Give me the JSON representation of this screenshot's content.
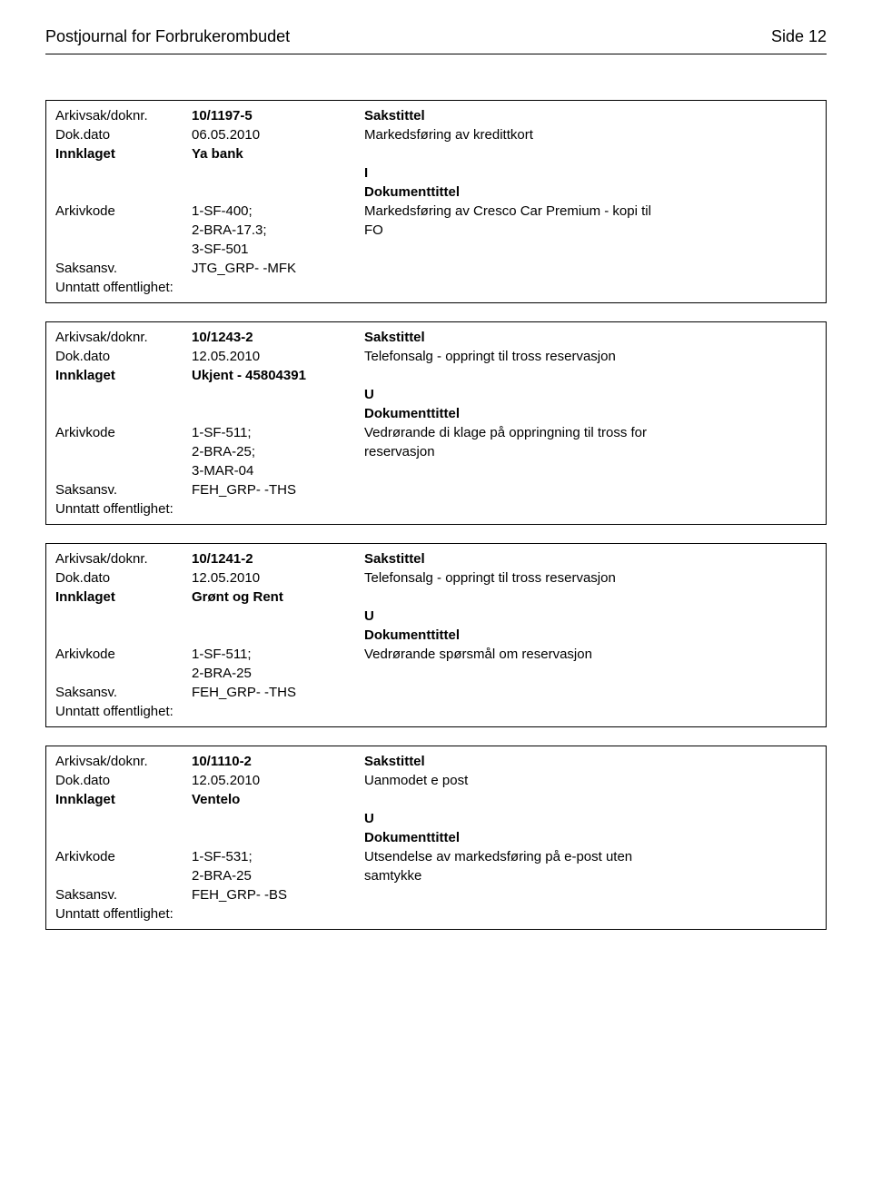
{
  "header": {
    "title": "Postjournal for Forbrukerombudet",
    "page_label": "Side 12"
  },
  "records": [
    {
      "arkivsak_label": "Arkivsak/doknr.",
      "arkivsak_value": "10/1197-5",
      "sakstittel_label": "Sakstittel",
      "dokdato_label": "Dok.dato",
      "dokdato_value": "06.05.2010",
      "sakstittel_value": "Markedsføring av kredittkort",
      "innklaget_label": "Innklaget",
      "innklaget_value": "Ya bank",
      "direction": "I",
      "dokumenttittel_label": "Dokumenttittel",
      "arkivkode_label": "Arkivkode",
      "arkivkode_value_lines": [
        "1-SF-400;",
        "2-BRA-17.3;",
        "3-SF-501"
      ],
      "dokumenttittel_value_lines": [
        "Markedsføring av Cresco Car Premium - kopi til",
        "FO"
      ],
      "saksansv_label": "Saksansv.",
      "saksansv_value": "JTG_GRP- -MFK",
      "unntatt_label": "Unntatt offentlighet:",
      "unntatt_value": ""
    },
    {
      "arkivsak_label": "Arkivsak/doknr.",
      "arkivsak_value": "10/1243-2",
      "sakstittel_label": "Sakstittel",
      "dokdato_label": "Dok.dato",
      "dokdato_value": "12.05.2010",
      "sakstittel_value": "Telefonsalg - oppringt til tross reservasjon",
      "innklaget_label": "Innklaget",
      "innklaget_value": "Ukjent - 45804391",
      "direction": "U",
      "dokumenttittel_label": "Dokumenttittel",
      "arkivkode_label": "Arkivkode",
      "arkivkode_value_lines": [
        "1-SF-511;",
        "2-BRA-25;",
        "3-MAR-04"
      ],
      "dokumenttittel_value_lines": [
        "Vedrørande di klage på oppringning til tross for",
        "reservasjon"
      ],
      "saksansv_label": "Saksansv.",
      "saksansv_value": "FEH_GRP- -THS",
      "unntatt_label": "Unntatt offentlighet:",
      "unntatt_value": ""
    },
    {
      "arkivsak_label": "Arkivsak/doknr.",
      "arkivsak_value": "10/1241-2",
      "sakstittel_label": "Sakstittel",
      "dokdato_label": "Dok.dato",
      "dokdato_value": "12.05.2010",
      "sakstittel_value": "Telefonsalg - oppringt til tross reservasjon",
      "innklaget_label": "Innklaget",
      "innklaget_value": "Grønt og Rent",
      "direction": "U",
      "dokumenttittel_label": "Dokumenttittel",
      "arkivkode_label": "Arkivkode",
      "arkivkode_value_lines": [
        "1-SF-511;",
        "2-BRA-25"
      ],
      "dokumenttittel_value_lines": [
        "Vedrørande spørsmål om reservasjon"
      ],
      "saksansv_label": "Saksansv.",
      "saksansv_value": "FEH_GRP- -THS",
      "unntatt_label": "Unntatt offentlighet:",
      "unntatt_value": ""
    },
    {
      "arkivsak_label": "Arkivsak/doknr.",
      "arkivsak_value": "10/1110-2",
      "sakstittel_label": "Sakstittel",
      "dokdato_label": "Dok.dato",
      "dokdato_value": "12.05.2010",
      "sakstittel_value": "Uanmodet e post",
      "innklaget_label": "Innklaget",
      "innklaget_value": "Ventelo",
      "direction": "U",
      "dokumenttittel_label": "Dokumenttittel",
      "arkivkode_label": "Arkivkode",
      "arkivkode_value_lines": [
        "1-SF-531;",
        "2-BRA-25"
      ],
      "dokumenttittel_value_lines": [
        "Utsendelse av markedsføring på e-post uten",
        "samtykke"
      ],
      "saksansv_label": "Saksansv.",
      "saksansv_value": "FEH_GRP- -BS",
      "unntatt_label": "Unntatt offentlighet:",
      "unntatt_value": ""
    }
  ]
}
